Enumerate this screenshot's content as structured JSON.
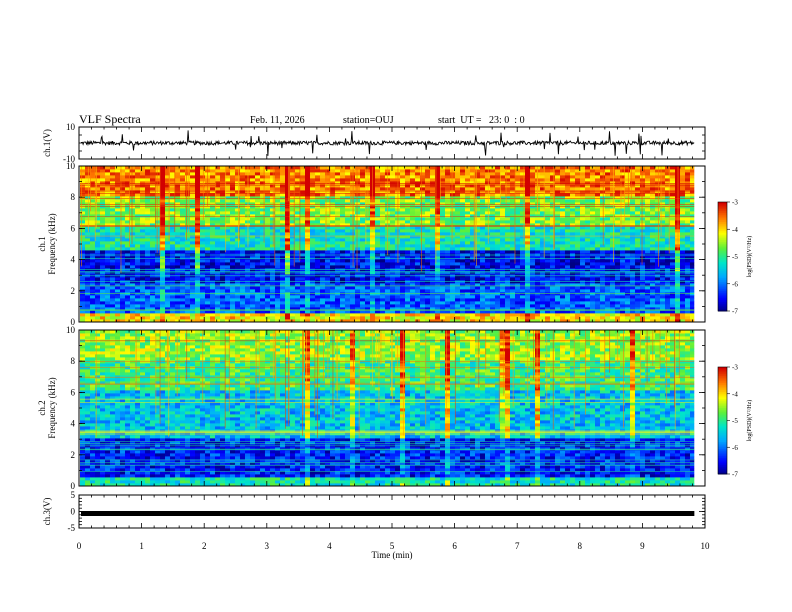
{
  "header": {
    "title": "VLF Spectra",
    "date": "Feb. 11, 2026",
    "station": "station=OUJ",
    "start": "start  UT =   23: 0  : 0"
  },
  "chart_data": [
    {
      "type": "line",
      "panel": "ch1-waveform",
      "ylabel": "ch.1(V)",
      "ylim": [
        -10,
        10
      ],
      "ytick_labels": [
        "10",
        "-10"
      ],
      "xlim": [
        0,
        10
      ],
      "series": [
        {
          "values_note": "",
          "baseline": 0
        }
      ],
      "color": "#000000"
    },
    {
      "type": "heatmap",
      "panel": "ch1-spectrogram",
      "ylabel": "ch.1\nFrequency  (kHz)",
      "ylim": [
        0,
        10
      ],
      "ytick_labels": [
        "0",
        "2",
        "4",
        "6",
        "8",
        "10"
      ],
      "xlim": [
        0,
        9.83
      ],
      "colorbar": {
        "label": "log(PSD)(V²/Hz)",
        "range": [
          -7,
          -3
        ],
        "tick_labels": [
          "-3",
          "-4",
          "-5",
          "-6",
          "-7"
        ]
      },
      "bands": [
        {
          "f_range": [
            8,
            10
          ],
          "level": -3.6
        },
        {
          "f_range": [
            6,
            8
          ],
          "level": -4.6
        },
        {
          "f_range": [
            4.5,
            6
          ],
          "level": -5.2
        },
        {
          "f_range": [
            2.5,
            4.5
          ],
          "level": -6.5
        },
        {
          "f_range": [
            0.5,
            2.5
          ],
          "level": -6.1
        },
        {
          "f_range": [
            0,
            0.5
          ],
          "level": -4.0
        }
      ]
    },
    {
      "type": "heatmap",
      "panel": "ch2-spectrogram",
      "ylabel": "ch.2\nFrequency  (kHz)",
      "ylim": [
        0,
        10
      ],
      "ytick_labels": [
        "0",
        "2",
        "4",
        "6",
        "8",
        "10"
      ],
      "xlim": [
        0,
        9.83
      ],
      "colorbar": {
        "label": "log(PSD)(V²/Hz)",
        "range": [
          -7,
          -3
        ],
        "tick_labels": [
          "-3",
          "-4",
          "-5",
          "-6",
          "-7"
        ]
      },
      "bands": [
        {
          "f_range": [
            8,
            10
          ],
          "level": -4.5
        },
        {
          "f_range": [
            6,
            8
          ],
          "level": -4.9
        },
        {
          "f_range": [
            3,
            6
          ],
          "level": -5.5
        },
        {
          "f_range": [
            0.5,
            3
          ],
          "level": -6.4
        },
        {
          "f_range": [
            0,
            0.5
          ],
          "level": -5.2
        }
      ]
    },
    {
      "type": "line",
      "panel": "ch3-waveform",
      "ylabel": "ch.3(V)",
      "ylim": [
        -5,
        5
      ],
      "ytick_labels": [
        "5",
        "0",
        "-5"
      ],
      "xlim": [
        0,
        10
      ],
      "series": [
        {
          "constant_value": 0
        }
      ],
      "color": "#000000"
    }
  ],
  "xaxis": {
    "label": "Time  (min)",
    "tick_labels": [
      "0",
      "1",
      "2",
      "3",
      "4",
      "5",
      "6",
      "7",
      "8",
      "9",
      "10"
    ],
    "range": [
      0,
      10
    ]
  }
}
